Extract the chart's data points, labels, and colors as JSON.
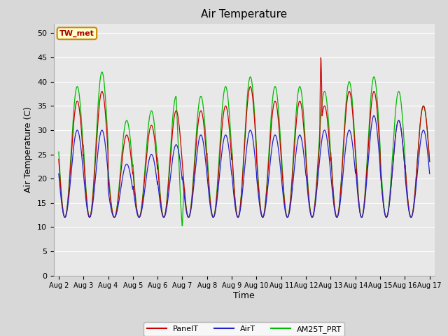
{
  "title": "Air Temperature",
  "xlabel": "Time",
  "ylabel": "Air Temperature (C)",
  "ylim": [
    0,
    52
  ],
  "yticks": [
    0,
    5,
    10,
    15,
    20,
    25,
    30,
    35,
    40,
    45,
    50
  ],
  "outer_bg": "#d8d8d8",
  "inner_bg": "#e8e8e8",
  "line_colors": {
    "PanelT": "#cc0000",
    "AirT": "#2222cc",
    "AM25T_PRT": "#00bb00"
  },
  "annotation": {
    "text": "TW_met",
    "text_color": "#aa0000",
    "box_facecolor": "#ffffcc",
    "box_edgecolor": "#cc8800"
  },
  "xtick_labels": [
    "Aug 2",
    "Aug 3",
    "Aug 4",
    "Aug 5",
    "Aug 6",
    "Aug 7",
    "Aug 8",
    "Aug 9",
    "Aug 10",
    "Aug 11",
    "Aug 12",
    "Aug 13",
    "Aug 14",
    "Aug 15",
    "Aug 16",
    "Aug 17"
  ],
  "grid_color": "#ffffff",
  "panel_max": [
    36,
    38,
    29,
    31,
    34,
    34,
    35,
    39,
    36,
    36,
    35,
    38,
    38,
    32,
    35
  ],
  "air_max": [
    30,
    30,
    23,
    25,
    27,
    29,
    29,
    30,
    29,
    29,
    30,
    30,
    33,
    32,
    30
  ],
  "am25_max": [
    39,
    42,
    32,
    34,
    37,
    37,
    39,
    41,
    39,
    39,
    38,
    40,
    41,
    38,
    35
  ],
  "night_min": 12.0,
  "spike_day": 10,
  "spike_value": 45.5,
  "am25_dip_day": 4,
  "am25_dip_value": 9.8
}
